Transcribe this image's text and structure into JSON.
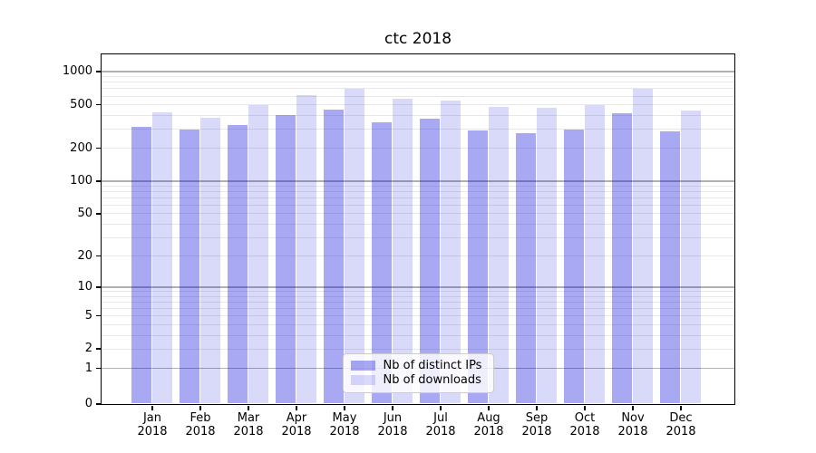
{
  "figure": {
    "background": "#ffffff"
  },
  "chart_data": {
    "type": "bar",
    "title": "ctc 2018",
    "months": [
      "Jan",
      "Feb",
      "Mar",
      "Apr",
      "May",
      "Jun",
      "Jul",
      "Aug",
      "Sep",
      "Oct",
      "Nov",
      "Dec"
    ],
    "year": "2018",
    "categories": [
      "Jan 2018",
      "Feb 2018",
      "Mar 2018",
      "Apr 2018",
      "May 2018",
      "Jun 2018",
      "Jul 2018",
      "Aug 2018",
      "Sep 2018",
      "Oct 2018",
      "Nov 2018",
      "Dec 2018"
    ],
    "series": [
      {
        "name": "Nb of distinct IPs",
        "color": "#0000dc",
        "alpha": 0.34,
        "values": [
          310,
          295,
          325,
          400,
          443,
          343,
          368,
          286,
          272,
          296,
          415,
          285
        ]
      },
      {
        "name": "Nb of downloads",
        "color": "#0000dc",
        "alpha": 0.15,
        "values": [
          423,
          375,
          488,
          611,
          687,
          566,
          542,
          469,
          467,
          493,
          692,
          438
        ]
      }
    ],
    "yscale": "log-like (log10 of 1+value)",
    "yticks": [
      0,
      1,
      2,
      5,
      10,
      20,
      50,
      100,
      200,
      500,
      1000
    ],
    "ylim": [
      0,
      1440
    ],
    "xlabel": "",
    "ylabel": "",
    "grid": "horizontal, major and minor",
    "legend_position": "lower center"
  },
  "axes": {
    "y_tick_labels": [
      "1000",
      "500",
      "200",
      "100",
      "50",
      "20",
      "10",
      "5",
      "2",
      "1",
      "0"
    ],
    "x_tick_year": "2018"
  },
  "colors": {
    "bar_distinct_ips": "#a8a8f3",
    "bar_downloads": "#d9d9fa",
    "major_grid": "#b0b0b0",
    "minor_grid": "#e8e8e8",
    "axis_line": "#000000",
    "legend_border": "#cccccc"
  }
}
